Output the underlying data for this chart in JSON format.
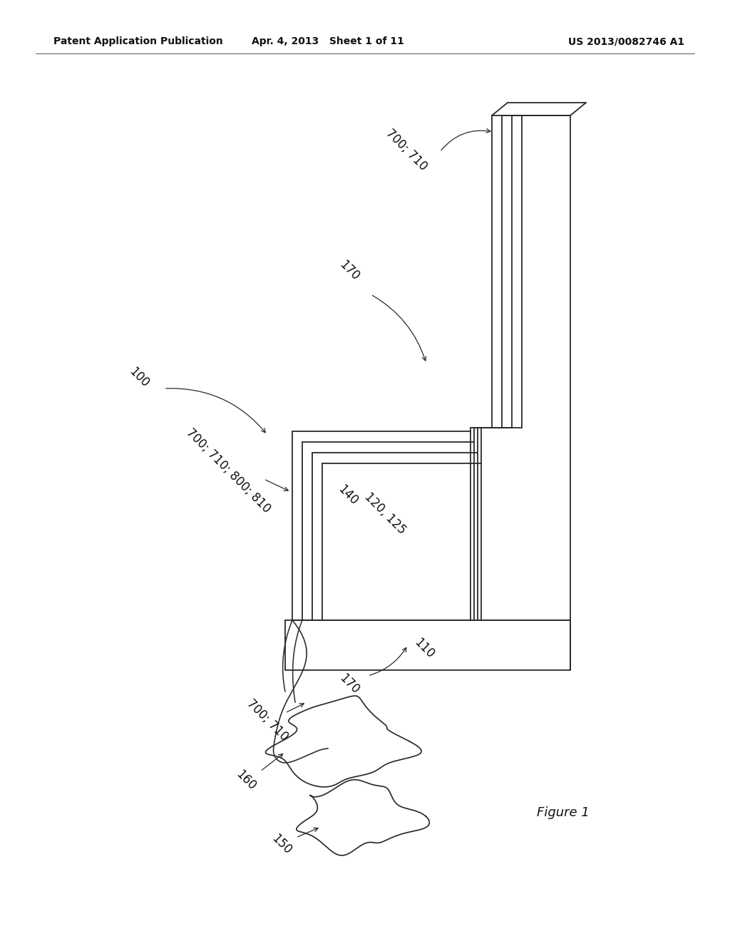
{
  "bg_color": "#ffffff",
  "line_color": "#2a2a2a",
  "header_left": "Patent Application Publication",
  "header_mid": "Apr. 4, 2013   Sheet 1 of 11",
  "header_right": "US 2013/0082746 A1",
  "figure_label": "Figure 1",
  "lw": 1.3
}
